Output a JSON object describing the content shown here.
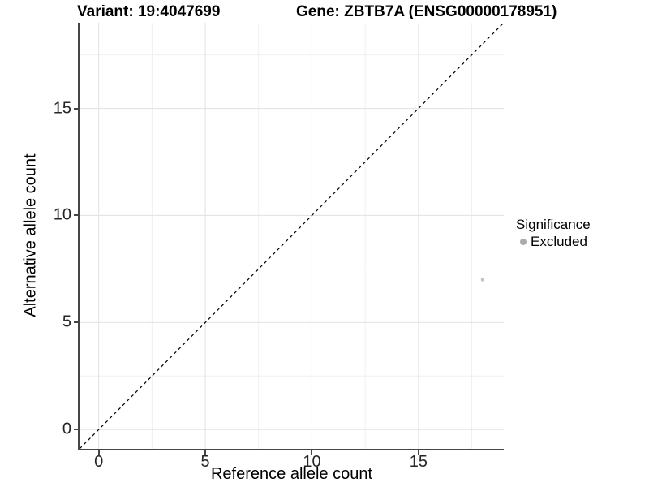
{
  "chart_data": {
    "type": "scatter",
    "title_variant": "Variant: 19:4047699",
    "title_gene": "Gene: ZBTB7A (ENSG00000178951)",
    "xlabel": "Reference allele count",
    "ylabel": "Alternative allele count",
    "xlim": [
      -0.9,
      19.0
    ],
    "ylim": [
      -0.9,
      19.0
    ],
    "xticks": [
      0,
      5,
      10,
      15
    ],
    "yticks": [
      0,
      5,
      10,
      15
    ],
    "xminor": [
      2.5,
      7.5,
      12.5,
      17.5
    ],
    "yminor": [
      2.5,
      7.5,
      12.5,
      17.5
    ],
    "grid": "major+minor, light gray on white",
    "series": [
      {
        "name": "Excluded",
        "color": "#c3c3c3",
        "points": [
          {
            "x": 18,
            "y": 7
          }
        ]
      }
    ],
    "reference_line": {
      "kind": "identity y=x",
      "from": [
        -0.9,
        -0.9
      ],
      "to": [
        19.0,
        19.0
      ],
      "style": "dashed",
      "color": "#000000"
    },
    "legend": {
      "title": "Significance",
      "position": "right",
      "items": [
        {
          "label": "Excluded",
          "marker_color": "#ababab"
        }
      ]
    },
    "colors": {
      "axis_line": "#454545",
      "grid_major": "#e4e4e4",
      "grid_minor": "#efefef",
      "point": "#c3c3c3",
      "legend_marker": "#ababab"
    }
  }
}
